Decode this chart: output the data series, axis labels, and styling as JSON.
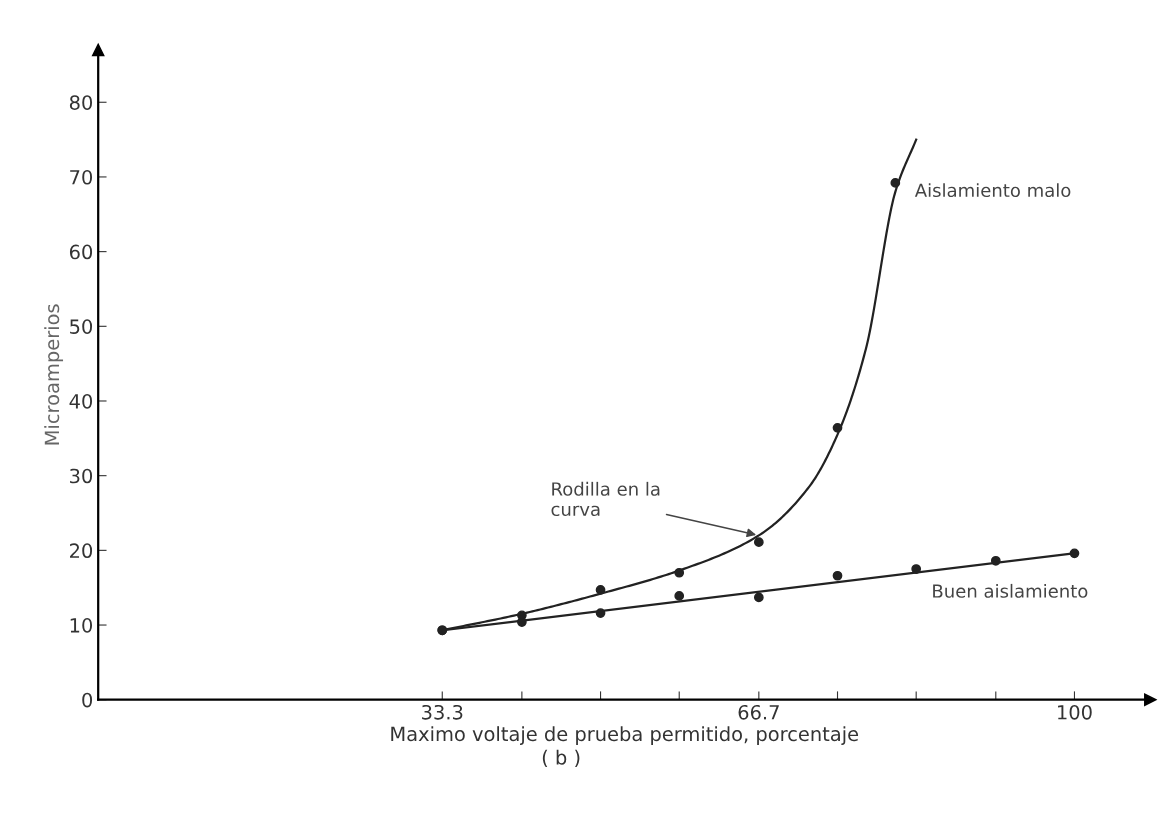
{
  "chart_data": {
    "type": "scatter",
    "xlabel": "Maximo voltaje de prueba permitido, porcentaje",
    "ylabel": "Microamperios",
    "annotations": [
      {
        "text": "Rodilla en la\ncurva",
        "x": 66.7,
        "y": 22.0
      },
      "( b )"
    ],
    "xlim": [
      -3,
      108
    ],
    "ylim": [
      0,
      87
    ],
    "xticks": [
      33.3,
      {
        "value": 41.7,
        "label": null
      },
      {
        "value": 50,
        "label": null
      },
      {
        "value": 58.3,
        "label": null
      },
      66.7,
      {
        "value": 75,
        "label": null
      },
      {
        "value": 83.3,
        "label": null
      },
      {
        "value": 91.7,
        "label": null
      },
      100
    ],
    "yticks": [
      0,
      10,
      20,
      30,
      40,
      50,
      60,
      70,
      80
    ],
    "grid": false,
    "legend": false,
    "marker": "circle",
    "series": [
      {
        "color": "#222222",
        "x": [
          33.3,
          41.7,
          50,
          58.3,
          66.7,
          75,
          81.1
        ],
        "values": [
          9.3,
          11.3,
          14.7,
          17.0,
          21.1,
          36.4,
          69.2
        ]
      },
      {
        "type": "line",
        "name": "Aislamiento malo",
        "color": "#222222",
        "marker": "none",
        "x": [
          33.3,
          41.7,
          50,
          58.3,
          66.7,
          72,
          75,
          78,
          81.1,
          83.3
        ],
        "values": [
          9.3,
          11.5,
          14.2,
          17.3,
          22.0,
          28.5,
          35.5,
          47,
          68,
          75
        ]
      },
      {
        "color": "#222222",
        "x": [
          33.3,
          41.7,
          50,
          58.3,
          66.7,
          75,
          83.3,
          91.7,
          100
        ],
        "values": [
          9.3,
          10.4,
          11.6,
          13.9,
          13.7,
          16.6,
          17.5,
          18.6,
          19.6
        ]
      },
      {
        "type": "line",
        "name": "Buen aislamiento",
        "color": "#222222",
        "marker": "none",
        "x": [
          33.3,
          100
        ],
        "values": [
          9.3,
          19.6
        ]
      }
    ]
  }
}
